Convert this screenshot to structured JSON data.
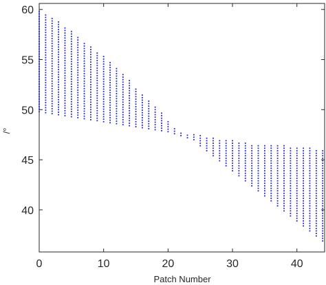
{
  "chart_data": {
    "type": "scatter",
    "xlabel": "Patch Number",
    "ylabel": "/°",
    "xlim": [
      0,
      44.3
    ],
    "ylim": [
      35.8,
      60.6
    ],
    "xticks": [
      "0",
      "10",
      "20",
      "30",
      "40"
    ],
    "yticks": [
      "40",
      "45",
      "50",
      "55",
      "60"
    ],
    "grid": false,
    "point_spacing": 0.25,
    "marker_color": "#1f1fd6",
    "series": [
      {
        "x": [
          0,
          1,
          2,
          3,
          4,
          5,
          6,
          7,
          8,
          9,
          10,
          11,
          12,
          13,
          14,
          15,
          16,
          17,
          18,
          19,
          20,
          21,
          22,
          23,
          24,
          25,
          26,
          27,
          28,
          29,
          30,
          31,
          32,
          33,
          34,
          35,
          36,
          37,
          38,
          39,
          40,
          41,
          42,
          43,
          44
        ],
        "lower": [
          49.8,
          49.7,
          49.6,
          49.5,
          49.4,
          49.3,
          49.2,
          49.1,
          49.0,
          48.9,
          48.8,
          48.7,
          48.6,
          48.5,
          48.4,
          48.3,
          48.2,
          48.1,
          48.0,
          47.9,
          47.8,
          47.6,
          47.4,
          47.2,
          47.0,
          46.4,
          45.9,
          45.4,
          44.9,
          44.4,
          43.9,
          43.4,
          42.9,
          42.4,
          41.9,
          41.4,
          40.9,
          40.4,
          39.9,
          39.4,
          38.9,
          38.4,
          37.9,
          37.4,
          36.9
        ],
        "upper": [
          60.0,
          59.6,
          59.2,
          58.8,
          58.3,
          57.8,
          57.3,
          56.8,
          56.3,
          55.8,
          55.3,
          54.8,
          54.2,
          53.5,
          52.9,
          52.2,
          51.6,
          51.0,
          50.4,
          49.7,
          49.0,
          48.1,
          47.8,
          47.6,
          47.5,
          47.4,
          47.3,
          47.2,
          47.1,
          47.0,
          46.9,
          46.8,
          46.7,
          46.6,
          46.6,
          46.5,
          46.5,
          46.4,
          46.4,
          46.3,
          46.3,
          46.2,
          46.2,
          46.1,
          46.1
        ]
      }
    ]
  }
}
